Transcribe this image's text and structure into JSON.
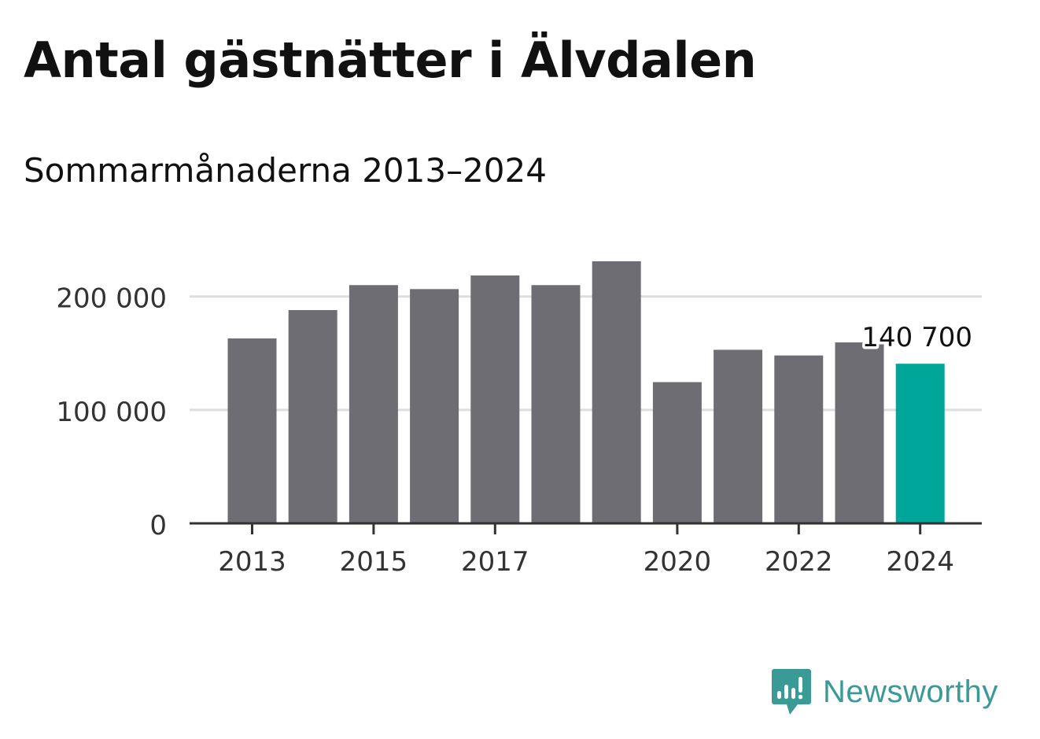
{
  "title": "Antal gästnätter i Älvdalen",
  "subtitle": "Sommarmånaderna 2013–2024",
  "brand": {
    "name": "Newsworthy",
    "icon": "newsworthy-logo-icon",
    "color": "#3a9a96"
  },
  "colors": {
    "bar": "#6e6d73",
    "highlight": "#00a69a",
    "grid": "#dddddd",
    "axis": "#333333"
  },
  "chart_data": {
    "type": "bar",
    "categories": [
      "2013",
      "2014",
      "2015",
      "2016",
      "2017",
      "2018",
      "2019",
      "2020",
      "2021",
      "2022",
      "2023",
      "2024"
    ],
    "values": [
      163000,
      188000,
      210000,
      206500,
      218500,
      210000,
      231000,
      124500,
      153000,
      148000,
      159500,
      140700
    ],
    "highlight_index": 11,
    "x_tick_labels": [
      "2013",
      "2015",
      "2017",
      "2020",
      "2022",
      "2024"
    ],
    "y_ticks": [
      0,
      100000,
      200000
    ],
    "y_tick_labels": [
      "0",
      "100 000",
      "200 000"
    ],
    "ylim": [
      0,
      231000
    ],
    "annotation": {
      "index": 11,
      "text": "140 700"
    },
    "grid": true,
    "legend": "none"
  }
}
